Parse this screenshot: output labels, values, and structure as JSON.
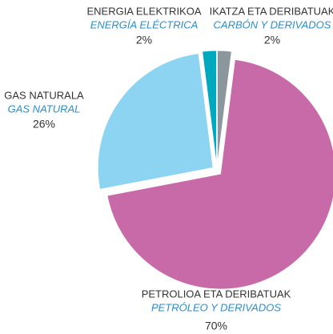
{
  "chart_data": {
    "type": "pie",
    "categories": [
      "IKATZA ETA DERIBATUAK",
      "PETROLIOA ETA DERIBATUAK",
      "GAS NATURALA",
      "ENERGIA ELEKTRIKOA"
    ],
    "subcategories": [
      "CARBÓN Y DERIVADOS",
      "PETRÓLEO Y DERIVADOS",
      "GAS NATURAL",
      "ENERGÍA ELÉCTRICA"
    ],
    "values": [
      2,
      70,
      26,
      2
    ],
    "value_labels": [
      "2%",
      "70%",
      "26%",
      "2%"
    ],
    "colors": [
      "#8c979d",
      "#c86aa8",
      "#8dd3f2",
      "#00a9bd"
    ]
  }
}
